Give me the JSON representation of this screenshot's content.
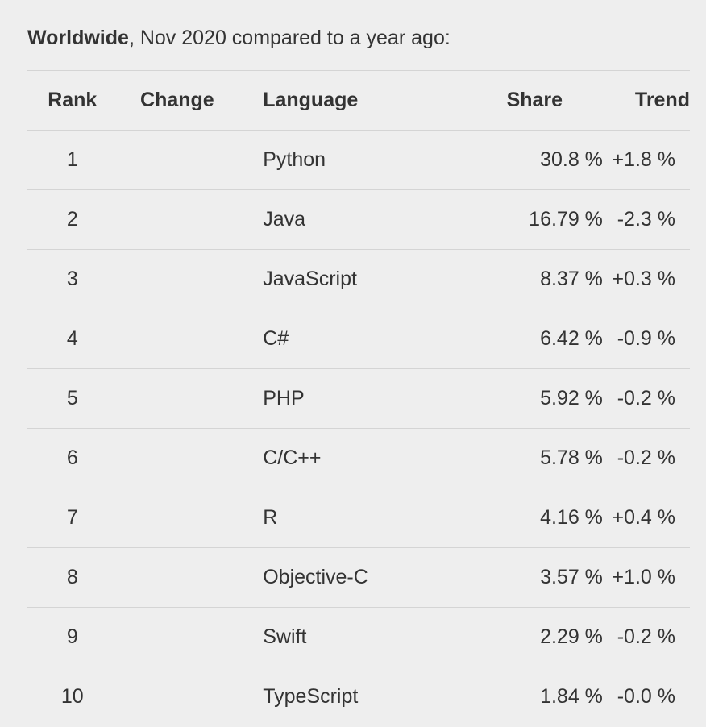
{
  "caption": {
    "bold": "Worldwide",
    "rest": ", Nov 2020 compared to a year ago:"
  },
  "table": {
    "headers": {
      "rank": "Rank",
      "change": "Change",
      "language": "Language",
      "share": "Share",
      "trend": "Trend"
    },
    "rows": [
      {
        "rank": "1",
        "change": "",
        "language": "Python",
        "share": "30.8 %",
        "trend": "+1.8 %"
      },
      {
        "rank": "2",
        "change": "",
        "language": "Java",
        "share": "16.79 %",
        "trend": "-2.3 %"
      },
      {
        "rank": "3",
        "change": "",
        "language": "JavaScript",
        "share": "8.37 %",
        "trend": "+0.3 %"
      },
      {
        "rank": "4",
        "change": "",
        "language": "C#",
        "share": "6.42 %",
        "trend": "-0.9 %"
      },
      {
        "rank": "5",
        "change": "",
        "language": "PHP",
        "share": "5.92 %",
        "trend": "-0.2 %"
      },
      {
        "rank": "6",
        "change": "",
        "language": "C/C++",
        "share": "5.78 %",
        "trend": "-0.2 %"
      },
      {
        "rank": "7",
        "change": "",
        "language": "R",
        "share": "4.16 %",
        "trend": "+0.4 %"
      },
      {
        "rank": "8",
        "change": "",
        "language": "Objective-C",
        "share": "3.57 %",
        "trend": "+1.0 %"
      },
      {
        "rank": "9",
        "change": "",
        "language": "Swift",
        "share": "2.29 %",
        "trend": "-0.2 %"
      },
      {
        "rank": "10",
        "change": "",
        "language": "TypeScript",
        "share": "1.84 %",
        "trend": "-0.0 %"
      }
    ]
  }
}
